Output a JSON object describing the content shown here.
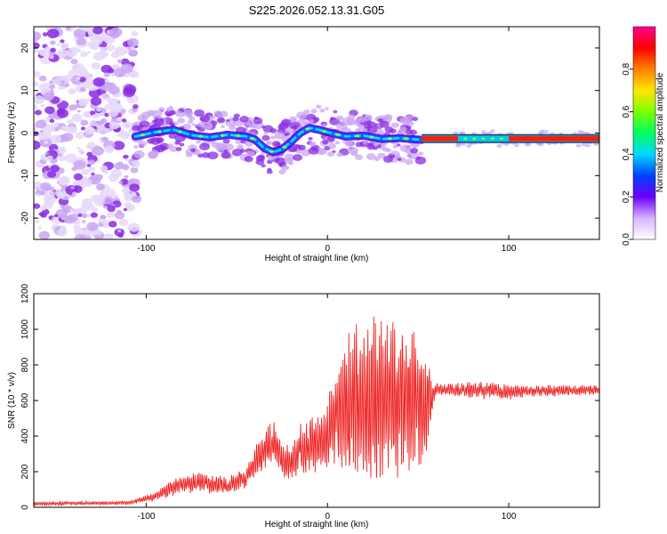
{
  "title": "S225.2026.052.13.31.G05",
  "colors": {
    "snr_line": "#ee2222",
    "frame": "#000000",
    "faint_noise": "#e6d8fa",
    "noise": "#c9a6f4",
    "strong_noise": "#8a2be2"
  },
  "chart_data": [
    {
      "type": "heatmap",
      "name": "spectrogram",
      "xlabel": "Height of straight line (km)",
      "ylabel": "Frequency (Hz)",
      "xlim": [
        -162,
        150
      ],
      "ylim": [
        -25,
        25
      ],
      "x_ticks": [
        -100,
        0,
        100
      ],
      "x_tick_labels": [
        "-100",
        "0",
        "100"
      ],
      "y_ticks": [
        -20,
        -10,
        0,
        10,
        20
      ],
      "y_tick_labels": [
        "-20",
        "-10",
        "0",
        "10",
        "20"
      ],
      "noise_region_x": [
        -162,
        -105
      ],
      "signal_track": {
        "x": [
          -106,
          -95,
          -85,
          -75,
          -65,
          -55,
          -45,
          -40,
          -35,
          -30,
          -25,
          -20,
          -15,
          -10,
          -5,
          0,
          10,
          20,
          30,
          40,
          52
        ],
        "freq": [
          -0.8,
          0.2,
          0.8,
          -0.5,
          -1.0,
          -0.4,
          -0.8,
          -1.5,
          -3.5,
          -4.5,
          -3.8,
          -2.0,
          0.0,
          1.2,
          0.8,
          0.2,
          -0.8,
          -0.6,
          -1.4,
          -1.2,
          -1.6
        ]
      },
      "strong_band": {
        "x": [
          52,
          150
        ],
        "freq": -1.3
      },
      "colorbar": {
        "label": "Normalized spectral amplitude",
        "range": [
          0,
          1
        ],
        "ticks": [
          0.0,
          0.2,
          0.4,
          0.6,
          0.8
        ],
        "tick_labels": [
          "0.0",
          "0.2",
          "0.4",
          "0.6",
          "0.8"
        ]
      }
    },
    {
      "type": "line",
      "name": "snr",
      "xlabel": "Height of straight line (km)",
      "ylabel": "SNR (10 * v/v)",
      "xlim": [
        -162,
        150
      ],
      "ylim": [
        0,
        1200
      ],
      "x_ticks": [
        -100,
        0,
        100
      ],
      "x_tick_labels": [
        "-100",
        "0",
        "100"
      ],
      "y_ticks": [
        0,
        200,
        400,
        600,
        800,
        1000,
        1200
      ],
      "y_tick_labels": [
        "0",
        "200",
        "400",
        "600",
        "800",
        "1000",
        "1200"
      ],
      "envelope": {
        "x": [
          -162,
          -110,
          -95,
          -88,
          -82,
          -70,
          -55,
          -45,
          -40,
          -35,
          -30,
          -25,
          -20,
          -15,
          -10,
          -5,
          0,
          5,
          10,
          15,
          20,
          25,
          30,
          35,
          40,
          45,
          50,
          55,
          58,
          60,
          65,
          80,
          100,
          120,
          150
        ],
        "mid": [
          20,
          25,
          60,
          100,
          130,
          140,
          120,
          160,
          260,
          300,
          380,
          260,
          250,
          330,
          350,
          340,
          420,
          520,
          560,
          580,
          560,
          600,
          620,
          620,
          600,
          620,
          580,
          560,
          620,
          660,
          660,
          660,
          650,
          655,
          660
        ],
        "amp": [
          12,
          12,
          25,
          45,
          55,
          60,
          55,
          60,
          90,
          110,
          130,
          110,
          100,
          150,
          180,
          190,
          260,
          340,
          400,
          480,
          460,
          500,
          500,
          480,
          460,
          460,
          400,
          360,
          80,
          40,
          35,
          55,
          45,
          35,
          30
        ]
      }
    }
  ]
}
